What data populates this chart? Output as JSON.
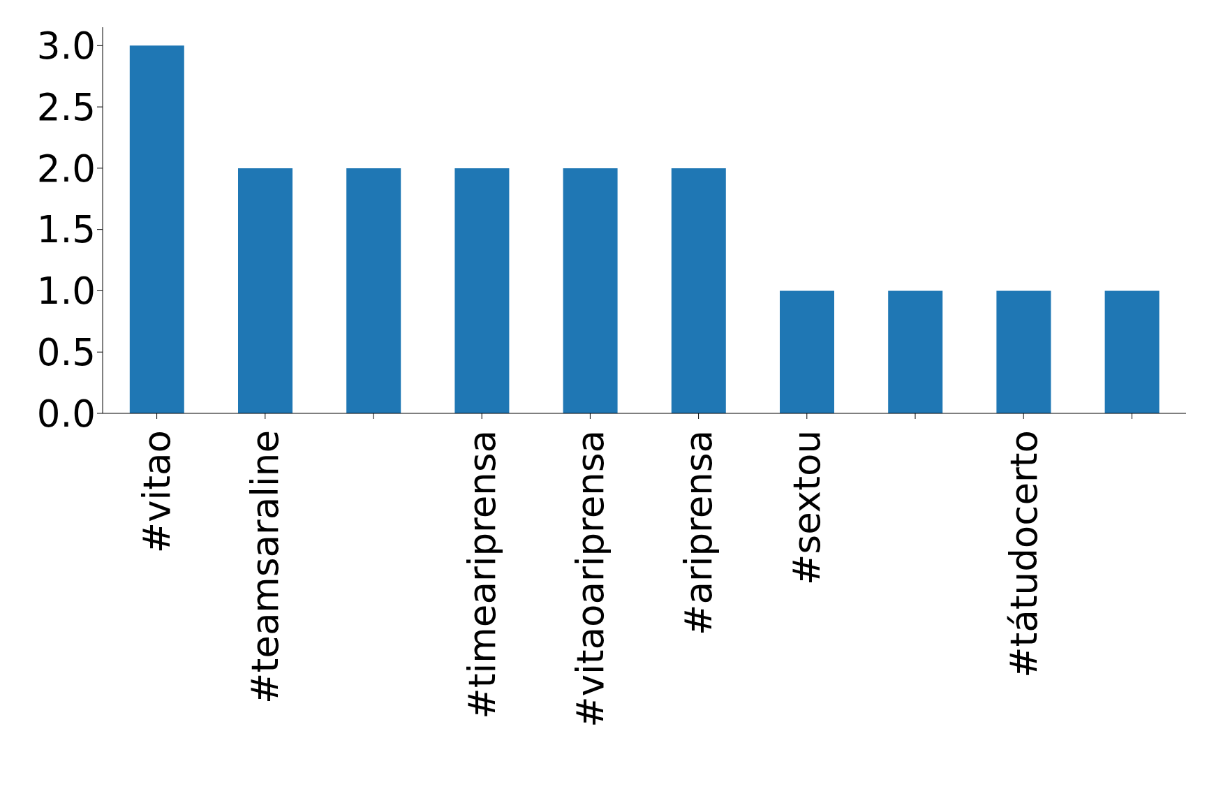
{
  "chart_data": {
    "type": "bar",
    "categories": [
      "#vitao",
      "#teamsaraline",
      null,
      "#timeariprensa",
      "#vitaoariprensa",
      "#ariprensa",
      "#sextou",
      null,
      "#tátudocerto",
      null
    ],
    "values": [
      3,
      2,
      2,
      2,
      2,
      2,
      1,
      1,
      1,
      1
    ],
    "color": "#1f77b4",
    "ylim": [
      0,
      3.15
    ],
    "yticks": [
      {
        "value": 0,
        "label": "0.0"
      },
      {
        "value": 0.5,
        "label": "0.5"
      },
      {
        "value": 1,
        "label": "1.0"
      },
      {
        "value": 1.5,
        "label": "1.5"
      },
      {
        "value": 2,
        "label": "2.0"
      },
      {
        "value": 2.5,
        "label": "2.5"
      },
      {
        "value": 3,
        "label": "3.0"
      }
    ],
    "grid": false,
    "legend": false
  }
}
